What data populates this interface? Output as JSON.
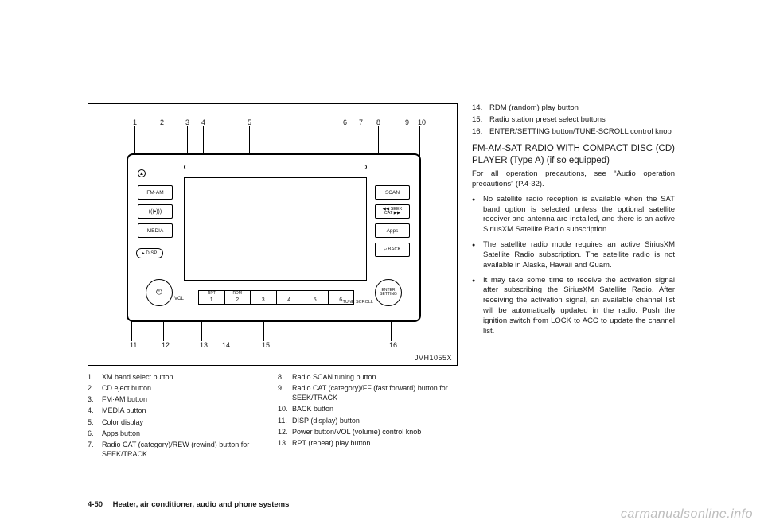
{
  "figure": {
    "code": "JVH1055X",
    "top_numbers": [
      1,
      2,
      3,
      4,
      5,
      6,
      7,
      8,
      9,
      10
    ],
    "bottom_numbers": [
      11,
      12,
      13,
      14,
      15,
      16
    ],
    "buttons": {
      "fmam": "FM·AM",
      "sat": "(((•)))",
      "media": "MEDIA",
      "disp": "▸ DISP",
      "scan": "SCAN",
      "seek_top": "◀◀ SEEK",
      "seek_bot": "CAT ▶▶",
      "apps": "Apps",
      "back": "⤶ BACK",
      "vol": "VOL",
      "tune": "TUNE\nSCROLL",
      "enter": "ENTER\nSETTING",
      "preset_top1": "RPT",
      "preset_top2": "RDM"
    },
    "presets": [
      "1",
      "2",
      "3",
      "4",
      "5",
      "6"
    ]
  },
  "legend_left": [
    {
      "n": "1.",
      "t": "XM band select button"
    },
    {
      "n": "2.",
      "t": "CD eject button"
    },
    {
      "n": "3.",
      "t": "FM·AM button"
    },
    {
      "n": "4.",
      "t": "MEDIA button"
    },
    {
      "n": "5.",
      "t": "Color display"
    },
    {
      "n": "6.",
      "t": "Apps button"
    },
    {
      "n": "7.",
      "t": "Radio CAT (category)/REW (rewind) button for SEEK/TRACK"
    }
  ],
  "legend_right": [
    {
      "n": "8.",
      "t": "Radio SCAN tuning button"
    },
    {
      "n": "9.",
      "t": "Radio CAT (category)/FF (fast forward) button for SEEK/TRACK"
    },
    {
      "n": "10.",
      "t": "BACK button"
    },
    {
      "n": "11.",
      "t": "DISP (display) button"
    },
    {
      "n": "12.",
      "t": "Power button/VOL (volume) control knob"
    },
    {
      "n": "13.",
      "t": "RPT (repeat) play button"
    }
  ],
  "right_top": [
    {
      "n": "14.",
      "t": "RDM (random) play button"
    },
    {
      "n": "15.",
      "t": "Radio station preset select buttons"
    },
    {
      "n": "16.",
      "t": "ENTER/SETTING button/TUNE·SCROLL control knob"
    }
  ],
  "heading": "FM-AM-SAT RADIO WITH COMPACT DISC (CD) PLAYER (Type A) (if so equipped)",
  "intro": "For all operation precautions, see “Audio operation precautions” (P.4-32).",
  "bullets": [
    "No satellite radio reception is available when the SAT band option is selected unless the optional satellite receiver and antenna are installed, and there is an active SiriusXM Satellite Radio subscription.",
    "The satellite radio mode requires an active SiriusXM Satellite Radio subscription. The satellite radio is not available in Alaska, Hawaii and Guam.",
    "It may take some time to receive the activation signal after subscribing the SiriusXM Satellite Radio. After receiving the activation signal, an available channel list will be automatically updated in the radio. Push the ignition switch from LOCK to ACC to update the channel list."
  ],
  "footer": {
    "page": "4-50",
    "section": "Heater, air conditioner, audio and phone systems"
  },
  "watermark": "carmanualsonline.info"
}
